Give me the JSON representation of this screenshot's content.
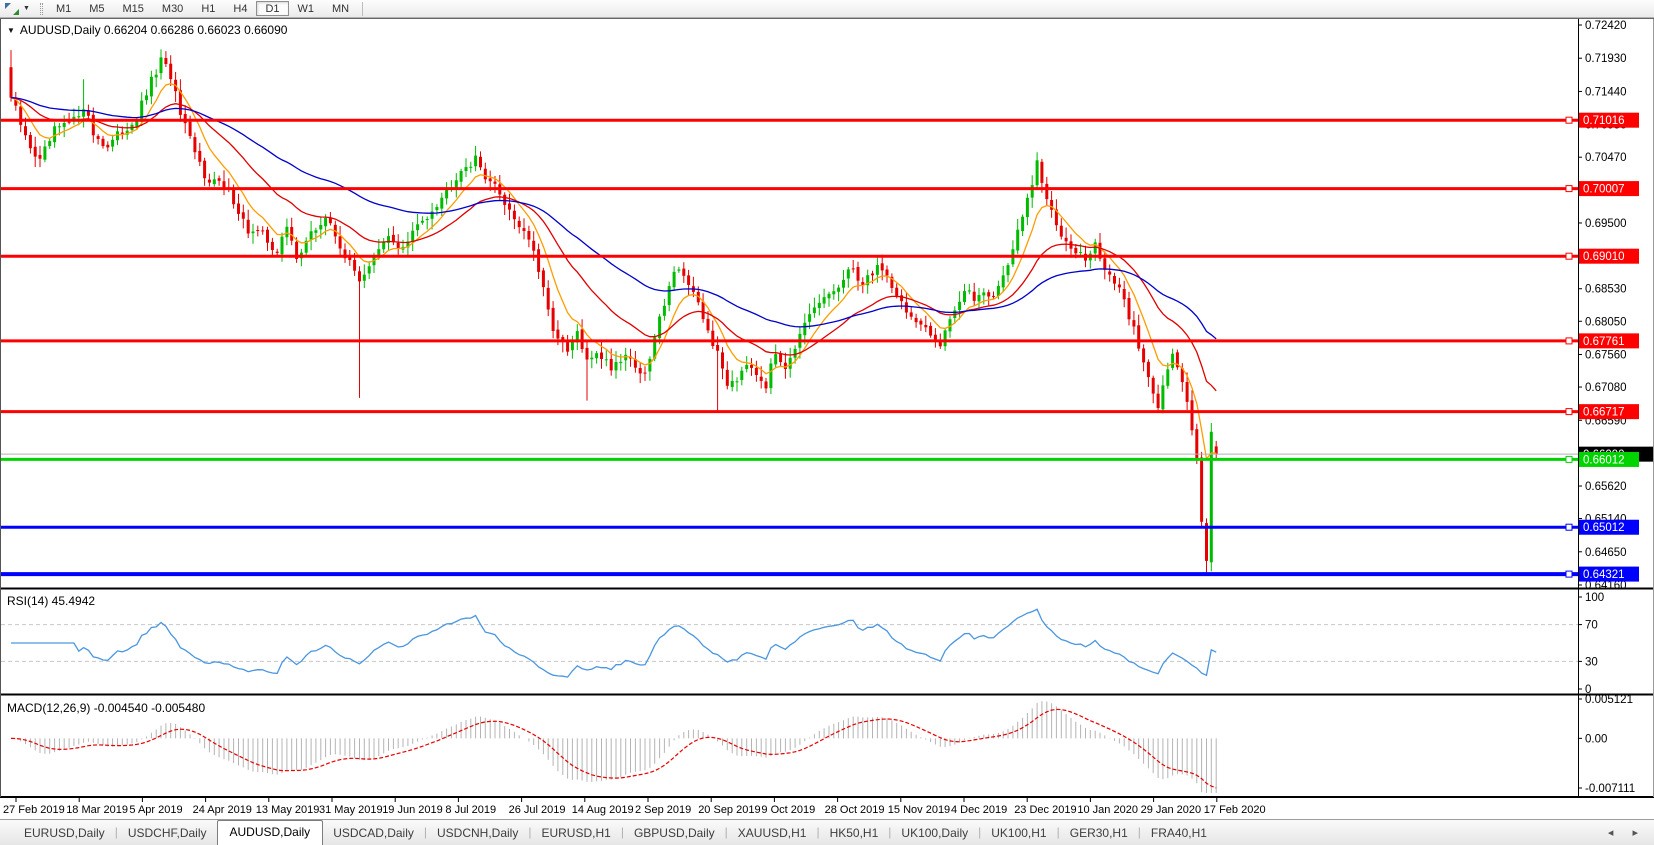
{
  "toolbar": {
    "timeframes": [
      "M1",
      "M5",
      "M15",
      "M30",
      "H1",
      "H4",
      "D1",
      "W1",
      "MN"
    ],
    "active_timeframe": "D1"
  },
  "chart": {
    "symbol": "AUDUSD,Daily",
    "title_text": "AUDUSD,Daily  0.66204 0.66286 0.66023 0.66090",
    "ohlc": {
      "open": "0.66204",
      "high": "0.66286",
      "low": "0.66023",
      "close": "0.66090"
    }
  },
  "rsi_panel": {
    "label": "RSI(14) 45.4942",
    "indicator": "RSI(14)",
    "value": "45.4942",
    "axis_ticks": [
      "100",
      "70",
      "30",
      "0"
    ]
  },
  "macd_panel": {
    "label": "MACD(12,26,9) -0.004540 -0.005480",
    "indicator": "MACD(12,26,9)",
    "macd_value": "-0.004540",
    "signal_value": "-0.005480",
    "axis_ticks": [
      "0.005121",
      "0.00",
      "-0.007111"
    ]
  },
  "price_axis_ticks": [
    "0.72420",
    "0.71930",
    "0.71440",
    "0.70950",
    "0.70470",
    "0.69500",
    "0.68530",
    "0.68050",
    "0.67560",
    "0.67080",
    "0.66590",
    "0.65620",
    "0.65140",
    "0.64650",
    "0.64160"
  ],
  "date_axis": [
    "27 Feb 2019",
    "18 Mar 2019",
    "5 Apr 2019",
    "24 Apr 2019",
    "13 May 2019",
    "31 May 2019",
    "19 Jun 2019",
    "8 Jul 2019",
    "26 Jul 2019",
    "14 Aug 2019",
    "2 Sep 2019",
    "20 Sep 2019",
    "9 Oct 2019",
    "28 Oct 2019",
    "15 Nov 2019",
    "4 Dec 2019",
    "23 Dec 2019",
    "10 Jan 2020",
    "29 Jan 2020",
    "17 Feb 2020"
  ],
  "tabs": {
    "items": [
      "EURUSD,Daily",
      "USDCHF,Daily",
      "AUDUSD,Daily",
      "USDCAD,Daily",
      "USDCNH,Daily",
      "EURUSD,H1",
      "GBPUSD,Daily",
      "XAUUSD,H1",
      "HK50,H1",
      "UK100,Daily",
      "UK100,H1",
      "GER30,H1",
      "FRA40,H1"
    ],
    "active_index": 2,
    "nav_arrows": "◂ ▸"
  },
  "chart_data": [
    {
      "type": "candlestick",
      "symbol": "AUDUSD",
      "timeframe": "Daily",
      "title": "AUDUSD,Daily 0.66204 0.66286 0.66023 0.66090",
      "num_candles": 250,
      "y_range": [
        0.6407,
        0.725
      ],
      "x_tick_labels": [
        "27 Feb 2019",
        "18 Mar 2019",
        "5 Apr 2019",
        "24 Apr 2019",
        "13 May 2019",
        "31 May 2019",
        "19 Jun 2019",
        "8 Jul 2019",
        "26 Jul 2019",
        "14 Aug 2019",
        "2 Sep 2019",
        "20 Sep 2019",
        "9 Oct 2019",
        "28 Oct 2019",
        "15 Nov 2019",
        "4 Dec 2019",
        "23 Dec 2019",
        "10 Jan 2020",
        "29 Jan 2020",
        "17 Feb 2020"
      ],
      "close_path_anchors": [
        [
          0,
          0.7135
        ],
        [
          3,
          0.7075
        ],
        [
          6,
          0.704
        ],
        [
          9,
          0.7085
        ],
        [
          13,
          0.71
        ],
        [
          15,
          0.7125
        ],
        [
          17,
          0.7082
        ],
        [
          20,
          0.7062
        ],
        [
          23,
          0.7085
        ],
        [
          26,
          0.7105
        ],
        [
          29,
          0.7158
        ],
        [
          31,
          0.7188
        ],
        [
          33,
          0.7168
        ],
        [
          35,
          0.7108
        ],
        [
          38,
          0.7052
        ],
        [
          40,
          0.7022
        ],
        [
          43,
          0.7008
        ],
        [
          46,
          0.6985
        ],
        [
          49,
          0.6938
        ],
        [
          52,
          0.6932
        ],
        [
          55,
          0.6908
        ],
        [
          57,
          0.6942
        ],
        [
          59,
          0.6902
        ],
        [
          62,
          0.6932
        ],
        [
          65,
          0.6958
        ],
        [
          68,
          0.6918
        ],
        [
          70,
          0.6888
        ],
        [
          72,
          0.6868
        ],
        [
          75,
          0.6898
        ],
        [
          78,
          0.6928
        ],
        [
          81,
          0.6912
        ],
        [
          84,
          0.6945
        ],
        [
          87,
          0.6972
        ],
        [
          90,
          0.6998
        ],
        [
          93,
          0.7032
        ],
        [
          96,
          0.7042
        ],
        [
          99,
          0.7012
        ],
        [
          102,
          0.6982
        ],
        [
          104,
          0.6958
        ],
        [
          107,
          0.6928
        ],
        [
          109,
          0.6878
        ],
        [
          111,
          0.6818
        ],
        [
          113,
          0.6778
        ],
        [
          115,
          0.6758
        ],
        [
          117,
          0.6788
        ],
        [
          119,
          0.6742
        ],
        [
          121,
          0.6762
        ],
        [
          124,
          0.6738
        ],
        [
          127,
          0.6758
        ],
        [
          131,
          0.6722
        ],
        [
          133,
          0.678
        ],
        [
          136,
          0.6862
        ],
        [
          138,
          0.6888
        ],
        [
          140,
          0.6858
        ],
        [
          142,
          0.6825
        ],
        [
          144,
          0.6792
        ],
        [
          146,
          0.6755
        ],
        [
          148,
          0.6715
        ],
        [
          150,
          0.6722
        ],
        [
          152,
          0.6748
        ],
        [
          154,
          0.6732
        ],
        [
          156,
          0.6712
        ],
        [
          158,
          0.6758
        ],
        [
          160,
          0.6742
        ],
        [
          163,
          0.6782
        ],
        [
          166,
          0.6822
        ],
        [
          169,
          0.6845
        ],
        [
          172,
          0.6862
        ],
        [
          174,
          0.6885
        ],
        [
          176,
          0.6858
        ],
        [
          179,
          0.6888
        ],
        [
          181,
          0.6872
        ],
        [
          184,
          0.6832
        ],
        [
          187,
          0.6802
        ],
        [
          190,
          0.6782
        ],
        [
          192,
          0.6775
        ],
        [
          194,
          0.6812
        ],
        [
          197,
          0.6848
        ],
        [
          199,
          0.6838
        ],
        [
          201,
          0.6852
        ],
        [
          203,
          0.6842
        ],
        [
          205,
          0.6872
        ],
        [
          207,
          0.6912
        ],
        [
          209,
          0.6958
        ],
        [
          211,
          0.7008
        ],
        [
          212,
          0.7035
        ],
        [
          214,
          0.6985
        ],
        [
          216,
          0.6945
        ],
        [
          218,
          0.6928
        ],
        [
          220,
          0.6912
        ],
        [
          222,
          0.6895
        ],
        [
          224,
          0.6915
        ],
        [
          226,
          0.6885
        ],
        [
          228,
          0.6862
        ],
        [
          230,
          0.6832
        ],
        [
          232,
          0.6795
        ],
        [
          234,
          0.6742
        ],
        [
          236,
          0.6705
        ],
        [
          237,
          0.6682
        ],
        [
          238,
          0.6715
        ],
        [
          240,
          0.6752
        ],
        [
          242,
          0.6715
        ],
        [
          243,
          0.6685
        ],
        [
          244,
          0.6652
        ],
        [
          245,
          0.6608
        ],
        [
          246,
          0.6515
        ],
        [
          247,
          0.6448
        ],
        [
          248,
          0.664
        ],
        [
          249,
          0.6609
        ]
      ],
      "wick_overrides": {
        "highs": [
          [
            0,
            0.7205
          ],
          [
            15,
            0.7162
          ],
          [
            31,
            0.7206
          ],
          [
            96,
            0.7048
          ],
          [
            212,
            0.7047
          ],
          [
            248,
            0.6655
          ]
        ],
        "lows": [
          [
            72,
            0.6692
          ],
          [
            119,
            0.6688
          ],
          [
            146,
            0.667
          ],
          [
            247,
            0.6432
          ]
        ]
      },
      "last_candle": {
        "open": 0.66204,
        "high": 0.66286,
        "low": 0.66023,
        "close": 0.6609
      },
      "moving_averages": [
        {
          "name": "fast-ma",
          "period": 8,
          "color": "#ff9c00"
        },
        {
          "name": "medium-ma",
          "period": 24,
          "color": "#e00000"
        },
        {
          "name": "slow-ma",
          "period": 58,
          "color": "#0000cc"
        }
      ],
      "horizontal_lines": [
        {
          "price": 0.71016,
          "label": "0.71016",
          "color": "#ff0000",
          "width": 3
        },
        {
          "price": 0.70007,
          "label": "0.70007",
          "color": "#ff0000",
          "width": 3
        },
        {
          "price": 0.6901,
          "label": "0.69010",
          "color": "#ff0000",
          "width": 3
        },
        {
          "price": 0.67761,
          "label": "0.67761",
          "color": "#ff0000",
          "width": 3
        },
        {
          "price": 0.66717,
          "label": "0.66717",
          "color": "#ff0000",
          "width": 3
        },
        {
          "price": 0.66012,
          "label": "0.66012",
          "color": "#00d400",
          "width": 3
        },
        {
          "price": 0.65012,
          "label": "0.65012",
          "color": "#0000ff",
          "width": 3
        },
        {
          "price": 0.64321,
          "label": "0.64321",
          "color": "#0000ff",
          "width": 4
        }
      ],
      "current_price": {
        "value": 0.6609,
        "label": "0.66090",
        "label_bg": "#000000",
        "line_color": "#b0b0b0"
      },
      "colors": {
        "up": "#00bb00",
        "down": "#e60000",
        "background": "#ffffff"
      }
    },
    {
      "type": "line",
      "indicator": "RSI",
      "period": 14,
      "label": "RSI(14) 45.4942",
      "current_value": 45.4942,
      "levels": [
        70,
        30
      ],
      "range": [
        0,
        100
      ],
      "color": "#4a96e0",
      "level_line_color": "#c8c8c8"
    },
    {
      "type": "macd",
      "indicator": "MACD",
      "fast": 12,
      "slow": 26,
      "signal": 9,
      "label": "MACD(12,26,9) -0.004540 -0.005480",
      "macd_value": -0.00454,
      "signal_value": -0.00548,
      "range": [
        -0.007111,
        0.005121
      ],
      "histogram_color": "#b4b4b4",
      "signal_color": "#e80000"
    }
  ]
}
